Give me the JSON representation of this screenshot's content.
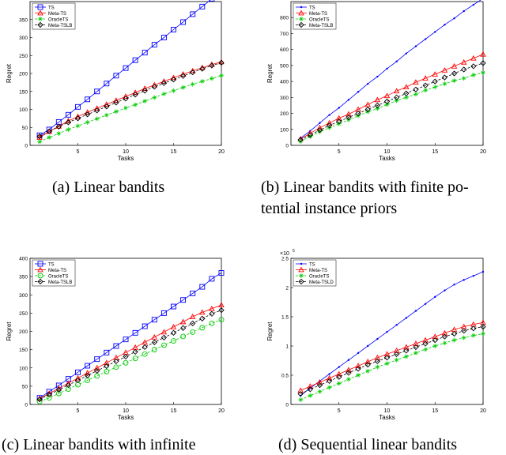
{
  "chart_data": [
    {
      "type": "line",
      "caption": "(a) Linear bandits",
      "xlabel": "Tasks",
      "ylabel": "Regret",
      "xlim": [
        0,
        20
      ],
      "ylim": [
        0,
        400
      ],
      "xticks": [
        5,
        10,
        15,
        20
      ],
      "yticks": [
        0,
        50,
        100,
        150,
        200,
        250,
        300,
        350
      ],
      "legend_position": "top-left",
      "x": [
        1,
        2,
        3,
        4,
        5,
        6,
        7,
        8,
        9,
        10,
        11,
        12,
        13,
        14,
        15,
        16,
        17,
        18,
        19,
        20
      ],
      "series": [
        {
          "name": "TS",
          "color": "#0000ff",
          "marker": "square",
          "dash": "",
          "values": [
            28,
            44,
            65,
            85,
            107,
            128,
            150,
            172,
            194,
            215,
            237,
            258,
            280,
            300,
            322,
            343,
            365,
            386,
            408,
            430
          ]
        },
        {
          "name": "Meta-TS",
          "color": "#ff0000",
          "marker": "triangle",
          "dash": "",
          "values": [
            22,
            38,
            53,
            68,
            80,
            92,
            103,
            114,
            125,
            136,
            147,
            158,
            168,
            178,
            188,
            198,
            207,
            216,
            225,
            232
          ]
        },
        {
          "name": "OracleTS",
          "color": "#00cc00",
          "marker": "star",
          "dash": "3,2",
          "values": [
            10,
            22,
            33,
            44,
            54,
            64,
            74,
            84,
            94,
            104,
            113,
            123,
            133,
            143,
            152,
            161,
            170,
            178,
            186,
            194
          ]
        },
        {
          "name": "Meta-TSLB",
          "color": "#000000",
          "marker": "diamond",
          "dash": "3,2",
          "values": [
            25,
            39,
            52,
            64,
            75,
            86,
            97,
            108,
            119,
            130,
            141,
            152,
            163,
            173,
            183,
            193,
            203,
            213,
            222,
            230
          ]
        }
      ]
    },
    {
      "type": "line",
      "caption_lines": [
        "(b) Linear bandits with finite po-",
        "tential instance priors"
      ],
      "xlabel": "Tasks",
      "ylabel": "Regret",
      "xlim": [
        0,
        20
      ],
      "ylim": [
        0,
        900
      ],
      "xticks": [
        5,
        10,
        15,
        20
      ],
      "yticks": [
        0,
        100,
        200,
        300,
        400,
        500,
        600,
        700,
        800
      ],
      "legend_position": "top-left",
      "x": [
        1,
        2,
        3,
        4,
        5,
        6,
        7,
        8,
        9,
        10,
        11,
        12,
        13,
        14,
        15,
        16,
        17,
        18,
        19,
        20
      ],
      "series": [
        {
          "name": "TS",
          "color": "#0000ff",
          "marker": "dot",
          "dash": "",
          "values": [
            45,
            90,
            140,
            190,
            235,
            285,
            335,
            385,
            430,
            480,
            525,
            575,
            620,
            665,
            710,
            755,
            795,
            840,
            880,
            920
          ]
        },
        {
          "name": "Meta-TS",
          "color": "#ff0000",
          "marker": "triangle",
          "dash": "",
          "values": [
            40,
            75,
            110,
            140,
            170,
            195,
            225,
            255,
            285,
            310,
            340,
            365,
            395,
            420,
            445,
            470,
            495,
            520,
            545,
            570
          ]
        },
        {
          "name": "OracleTS",
          "color": "#00cc00",
          "marker": "star",
          "dash": "3,2",
          "values": [
            25,
            55,
            85,
            110,
            135,
            160,
            185,
            210,
            230,
            255,
            280,
            300,
            320,
            345,
            365,
            385,
            405,
            420,
            440,
            455
          ]
        },
        {
          "name": "Meta-TSLB",
          "color": "#000000",
          "marker": "diamond",
          "dash": "3,2",
          "values": [
            35,
            65,
            95,
            125,
            150,
            175,
            200,
            225,
            250,
            275,
            300,
            325,
            350,
            375,
            400,
            425,
            450,
            475,
            495,
            515
          ]
        }
      ]
    },
    {
      "type": "line",
      "caption": "(c) Linear bandits with infinite",
      "xlabel": "Tasks",
      "ylabel": "Regret",
      "xlim": [
        0,
        20
      ],
      "ylim": [
        0,
        400
      ],
      "xticks": [
        5,
        10,
        15,
        20
      ],
      "yticks": [
        0,
        50,
        100,
        150,
        200,
        250,
        300,
        350,
        400
      ],
      "legend_position": "top-left",
      "x": [
        1,
        2,
        3,
        4,
        5,
        6,
        7,
        8,
        9,
        10,
        11,
        12,
        13,
        14,
        15,
        16,
        17,
        18,
        19,
        20
      ],
      "series": [
        {
          "name": "TS",
          "color": "#0000ff",
          "marker": "square",
          "dash": "",
          "values": [
            18,
            35,
            52,
            70,
            88,
            106,
            124,
            142,
            160,
            178,
            196,
            214,
            232,
            250,
            268,
            286,
            304,
            322,
            344,
            360
          ]
        },
        {
          "name": "Meta-TS",
          "color": "#ff0000",
          "marker": "triangle",
          "dash": "",
          "values": [
            16,
            30,
            44,
            58,
            72,
            86,
            100,
            114,
            128,
            142,
            156,
            170,
            184,
            198,
            212,
            226,
            240,
            252,
            262,
            272
          ]
        },
        {
          "name": "OracleTS",
          "color": "#00cc00",
          "marker": "circle",
          "dash": "3,2",
          "values": [
            8,
            18,
            30,
            42,
            54,
            66,
            78,
            90,
            102,
            114,
            126,
            138,
            150,
            162,
            174,
            186,
            198,
            210,
            222,
            232
          ]
        },
        {
          "name": "Meta-TSLB",
          "color": "#000000",
          "marker": "diamond",
          "dash": "3,2",
          "values": [
            14,
            27,
            40,
            53,
            66,
            79,
            92,
            105,
            118,
            131,
            144,
            157,
            170,
            183,
            196,
            209,
            222,
            235,
            248,
            258
          ]
        }
      ]
    },
    {
      "type": "line",
      "caption": "(d) Sequential linear bandits",
      "xlabel": "Tasks",
      "ylabel": "Regret",
      "exponent_label": "×10",
      "exponent": "5",
      "xlim": [
        0,
        20
      ],
      "ylim": [
        0,
        2.5
      ],
      "xticks": [
        5,
        10,
        15,
        20
      ],
      "yticks": [
        0,
        0.5,
        1,
        1.5,
        2,
        2.5
      ],
      "ytick_labels": [
        "0",
        "0.5",
        "1",
        "1.5",
        "2",
        "2.5"
      ],
      "legend_position": "top-left",
      "x": [
        1,
        2,
        3,
        4,
        5,
        6,
        7,
        8,
        9,
        10,
        11,
        12,
        13,
        14,
        15,
        16,
        17,
        18,
        19,
        20
      ],
      "series": [
        {
          "name": "TS",
          "color": "#0000ff",
          "marker": "dot",
          "dash": "",
          "values": [
            0.15,
            0.28,
            0.4,
            0.52,
            0.64,
            0.76,
            0.88,
            1.0,
            1.12,
            1.24,
            1.36,
            1.48,
            1.6,
            1.72,
            1.84,
            1.95,
            2.05,
            2.13,
            2.2,
            2.27
          ]
        },
        {
          "name": "Meta-TS",
          "color": "#ff0000",
          "marker": "triangle",
          "dash": "",
          "values": [
            0.24,
            0.31,
            0.38,
            0.45,
            0.52,
            0.59,
            0.66,
            0.73,
            0.8,
            0.86,
            0.92,
            0.98,
            1.04,
            1.1,
            1.16,
            1.22,
            1.28,
            1.33,
            1.37,
            1.4
          ]
        },
        {
          "name": "OracleTS",
          "color": "#00cc00",
          "marker": "star",
          "dash": "3,2",
          "values": [
            0.08,
            0.15,
            0.22,
            0.29,
            0.36,
            0.43,
            0.5,
            0.57,
            0.64,
            0.7,
            0.76,
            0.82,
            0.88,
            0.94,
            1.0,
            1.05,
            1.1,
            1.14,
            1.18,
            1.21
          ]
        },
        {
          "name": "Meta-TSLD",
          "color": "#000000",
          "marker": "diamond",
          "dash": "3,2",
          "values": [
            0.18,
            0.26,
            0.33,
            0.4,
            0.47,
            0.54,
            0.61,
            0.68,
            0.74,
            0.8,
            0.86,
            0.92,
            0.98,
            1.04,
            1.1,
            1.16,
            1.21,
            1.26,
            1.3,
            1.33
          ]
        }
      ]
    }
  ]
}
